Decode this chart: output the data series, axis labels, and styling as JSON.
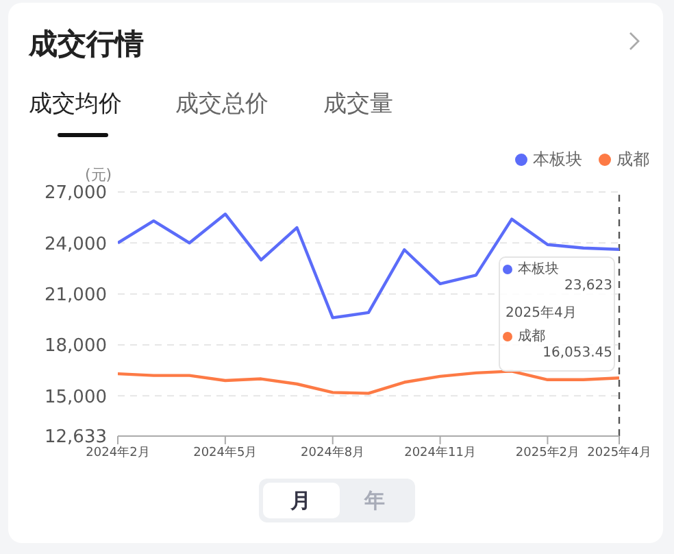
{
  "chart_data": {
    "type": "line",
    "title": "成交行情",
    "ylabel": "(元)",
    "annotations": [
      "成交均价",
      "成交总价",
      "成交量",
      "月",
      "年",
      "2025年4月"
    ],
    "x": [
      "2024-02",
      "2024-03",
      "2024-04",
      "2024-05",
      "2024-06",
      "2024-07",
      "2024-08",
      "2024-09",
      "2024-10",
      "2024-11",
      "2024-12",
      "2025-01",
      "2025-02",
      "2025-03",
      "2025-04"
    ],
    "series": [
      {
        "name": "本板块",
        "color": "#5b6cf9",
        "values": [
          24000,
          25300,
          24000,
          25700,
          23000,
          24900,
          19600,
          19900,
          23600,
          21600,
          22100,
          25400,
          23900,
          23700,
          23623
        ],
        "value_labels": [
          null,
          null,
          null,
          null,
          null,
          null,
          null,
          null,
          null,
          null,
          null,
          null,
          null,
          null,
          "23,623"
        ]
      },
      {
        "name": "成都",
        "color": "#fd7a45",
        "values": [
          16300,
          16200,
          16200,
          15900,
          16000,
          15700,
          15200,
          15150,
          15800,
          16150,
          16350,
          16450,
          15950,
          15950,
          16053.45
        ],
        "value_labels": [
          null,
          null,
          null,
          null,
          null,
          null,
          null,
          null,
          null,
          null,
          null,
          null,
          null,
          null,
          "16,053.45"
        ]
      }
    ],
    "xlim": [
      "2024-02",
      "2025-04"
    ],
    "xticks": [
      {
        "value": "2024-02",
        "label": "2024年2月"
      },
      {
        "value": "2024-05",
        "label": "2024年5月"
      },
      {
        "value": "2024-08",
        "label": "2024年8月"
      },
      {
        "value": "2024-11",
        "label": "2024年11月"
      },
      {
        "value": "2025-02",
        "label": "2025年2月"
      },
      {
        "value": "2025-04",
        "label": "2025年4月"
      }
    ],
    "ylim": [
      12633,
      27000
    ],
    "yticks": [
      {
        "value": 12633,
        "label": "12,633"
      },
      {
        "value": 15000,
        "label": "15,000"
      },
      {
        "value": 18000,
        "label": "18,000"
      },
      {
        "value": 21000,
        "label": "21,000"
      },
      {
        "value": 24000,
        "label": "24,000"
      },
      {
        "value": 27000,
        "label": "27,000"
      }
    ],
    "grid": "y",
    "legend": "top right",
    "line_style": "solid",
    "ref_lines": [
      {
        "axis": "x",
        "value": "2025-04",
        "color": "#555555",
        "line_style": "dashed"
      }
    ]
  }
}
